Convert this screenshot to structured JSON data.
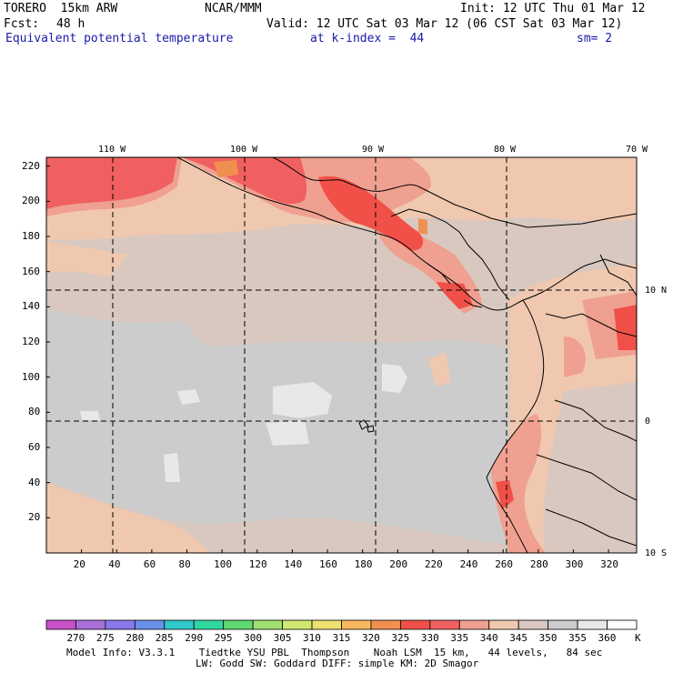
{
  "header": {
    "model": "TORERO  15km ARW",
    "center": "NCAR/MMM",
    "init": "Init: 12 UTC Thu 01 Mar 12",
    "fcst_label": "Fcst:",
    "fcst_value": "48 h",
    "valid": "Valid: 12 UTC Sat 03 Mar 12 (06 CST Sat 03 Mar 12)",
    "field": "Equivalent potential temperature",
    "level": "at k-index =  44",
    "smoothing": "sm= 2"
  },
  "map": {
    "lon_labels": [
      "110 W",
      "100 W",
      "90 W",
      "80 W",
      "70 W"
    ],
    "lat_labels": [
      "10 N",
      "0",
      "10 S"
    ],
    "x_ticks": [
      "20",
      "40",
      "60",
      "80",
      "100",
      "120",
      "140",
      "160",
      "180",
      "200",
      "220",
      "240",
      "260",
      "280",
      "300",
      "320"
    ],
    "y_ticks": [
      "220",
      "200",
      "180",
      "160",
      "140",
      "120",
      "100",
      "80",
      "60",
      "40",
      "20"
    ]
  },
  "colorbar": {
    "labels": [
      "270",
      "275",
      "280",
      "285",
      "290",
      "295",
      "300",
      "305",
      "310",
      "315",
      "320",
      "325",
      "330",
      "335",
      "340",
      "345",
      "350",
      "355",
      "360"
    ],
    "unit": "K",
    "colors": [
      "#c850c8",
      "#a870d8",
      "#8878e8",
      "#6890e8",
      "#30c8c8",
      "#30d8a0",
      "#60d870",
      "#a0e070",
      "#d0e870",
      "#f0e070",
      "#f8b860",
      "#f09050",
      "#f05048",
      "#f06060",
      "#f0a090",
      "#f0c8b0",
      "#d8c8c0",
      "#cccccc",
      "#e8e8e8",
      "#ffffff"
    ]
  },
  "footer": {
    "line1": "Model Info: V3.3.1    Tiedtke YSU PBL  Thompson    Noah LSM  15 km,   44 levels,   84 sec",
    "line2": "LW: Godd SW: Goddard DIFF: simple KM: 2D Smagor"
  }
}
